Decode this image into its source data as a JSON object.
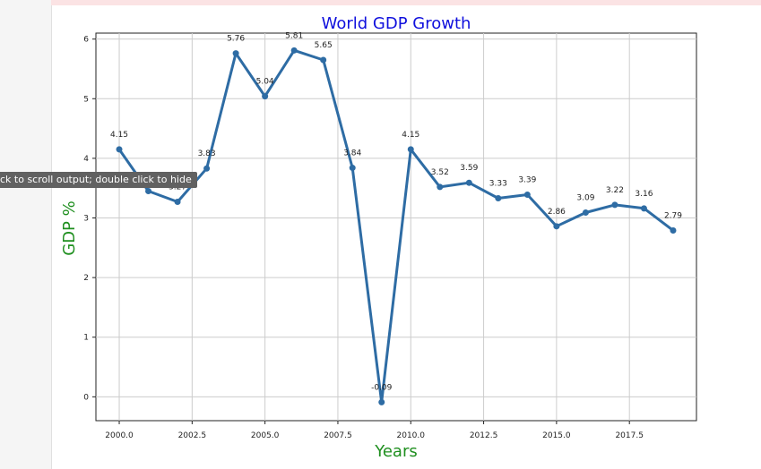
{
  "tooltip": {
    "text": "ck to scroll output; double click to hide"
  },
  "chart_data": {
    "type": "line",
    "title": "World GDP Growth",
    "xlabel": "Years",
    "ylabel": "GDP %",
    "xlim": [
      1999.2,
      2019.8
    ],
    "ylim": [
      -0.4,
      6.1
    ],
    "x_ticks": [
      2000.0,
      2002.5,
      2005.0,
      2007.5,
      2010.0,
      2012.5,
      2015.0,
      2017.5
    ],
    "x_tick_labels": [
      "2000.0",
      "2002.5",
      "2005.0",
      "2007.5",
      "2010.0",
      "2012.5",
      "2015.0",
      "2017.5"
    ],
    "y_ticks": [
      0,
      1,
      2,
      3,
      4,
      5,
      6
    ],
    "y_tick_labels": [
      "0",
      "1",
      "2",
      "3",
      "4",
      "5",
      "6"
    ],
    "grid": true,
    "series": [
      {
        "x": [
          2000,
          2001,
          2002,
          2003,
          2004,
          2005,
          2006,
          2007,
          2008,
          2009,
          2010,
          2011,
          2012,
          2013,
          2014,
          2015,
          2016,
          2017,
          2018,
          2019
        ],
        "values": [
          4.15,
          3.45,
          3.27,
          3.83,
          5.76,
          5.04,
          5.81,
          5.65,
          3.84,
          -0.09,
          4.15,
          3.52,
          3.59,
          3.33,
          3.39,
          2.86,
          3.09,
          3.22,
          3.16,
          2.79
        ],
        "labels": [
          "4.15",
          "",
          "3.27",
          "3.83",
          "5.76",
          "5.04",
          "5.81",
          "5.65",
          "3.84",
          "-0.09",
          "4.15",
          "3.52",
          "3.59",
          "3.33",
          "3.39",
          "2.86",
          "3.09",
          "3.22",
          "3.16",
          "2.79"
        ]
      }
    ],
    "colors": {
      "line": "#2e6ca4",
      "grid": "#cccccc",
      "title": "#1010dd",
      "axis_label": "#1f8f1f"
    }
  }
}
